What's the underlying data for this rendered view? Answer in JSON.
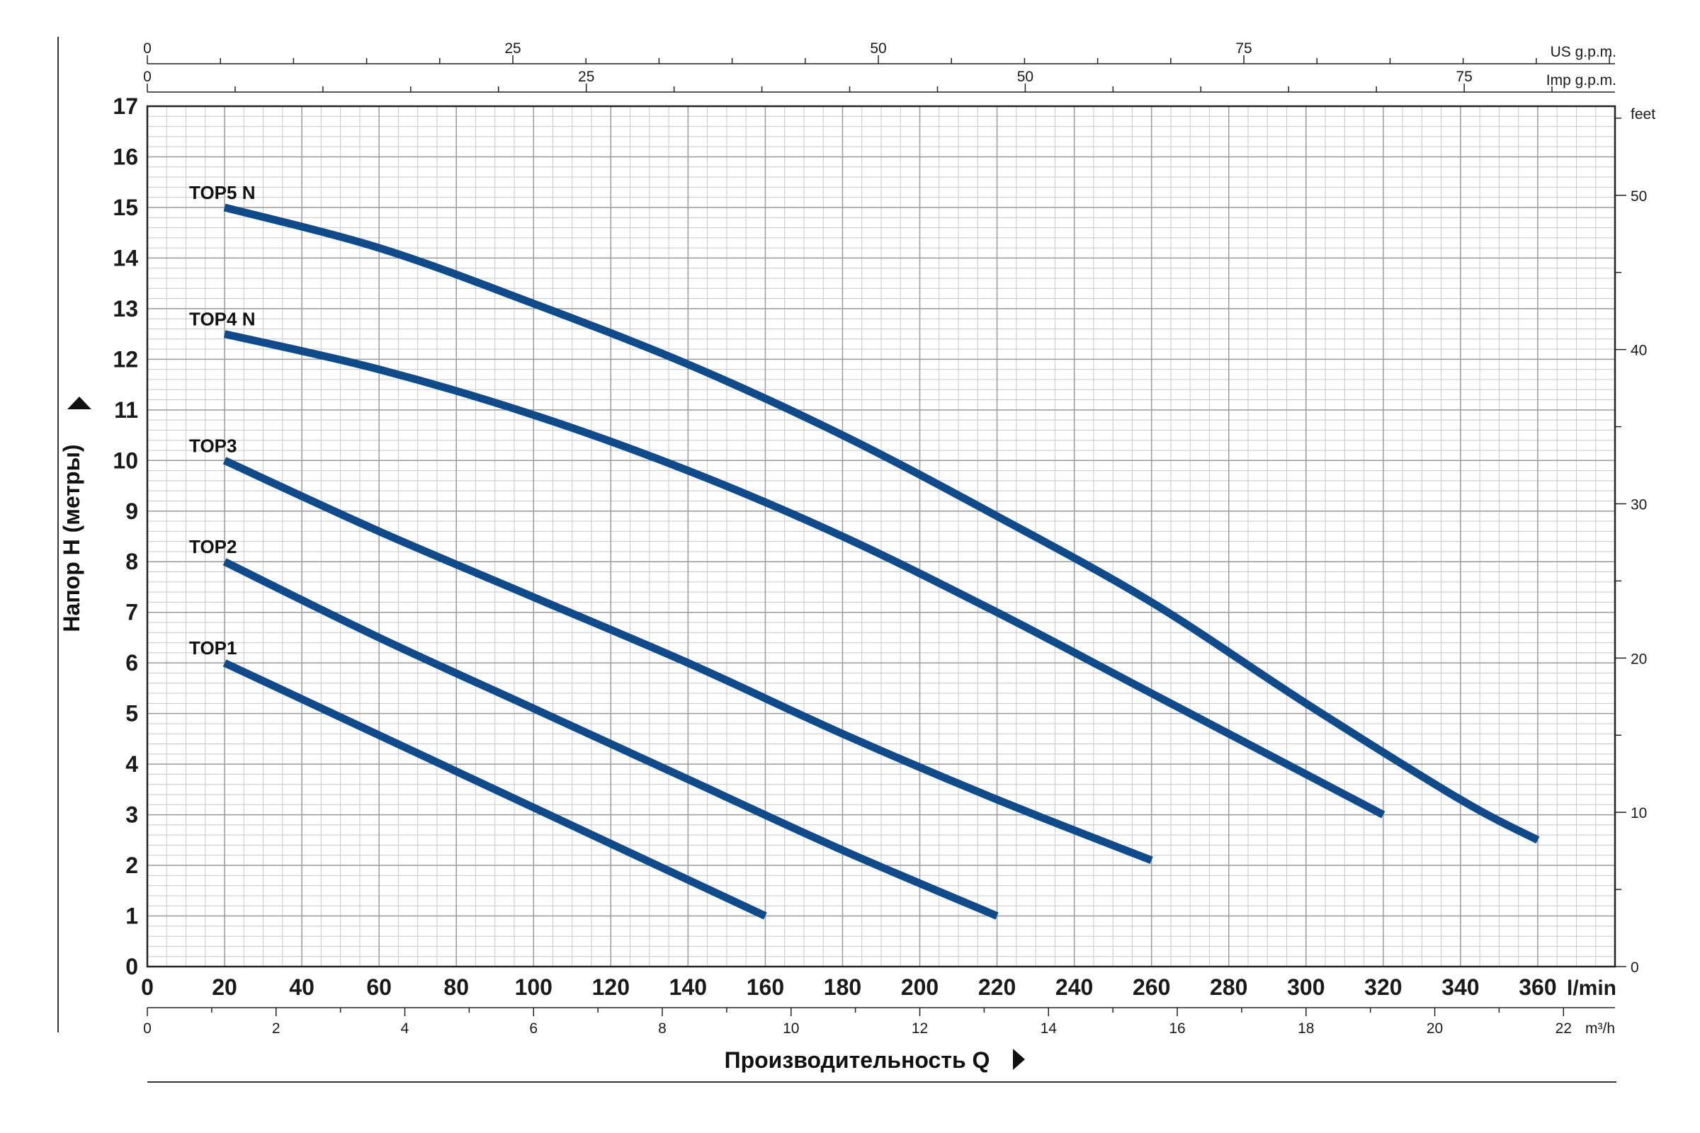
{
  "chart_data": {
    "type": "line",
    "title": "",
    "xlabel": "Производительность Q",
    "ylabel": "Напор H (метры)",
    "x_unit": "l/min",
    "xlim": [
      0,
      380
    ],
    "ylim": [
      0,
      17
    ],
    "x_ticks": [
      0,
      20,
      40,
      60,
      80,
      100,
      120,
      140,
      160,
      180,
      200,
      220,
      240,
      260,
      280,
      300,
      320,
      340,
      360
    ],
    "y_ticks": [
      0,
      1,
      2,
      3,
      4,
      5,
      6,
      7,
      8,
      9,
      10,
      11,
      12,
      13,
      14,
      15,
      16,
      17
    ],
    "grid": true,
    "secondary_axes": {
      "us_gpm": {
        "unit": "US g.p.m.",
        "ticks": [
          0,
          25,
          50,
          75
        ]
      },
      "imp_gpm": {
        "unit": "Imp g.p.m.",
        "ticks": [
          0,
          25,
          50,
          75
        ]
      },
      "m3h": {
        "unit": "m³/h",
        "ticks": [
          0,
          2,
          4,
          6,
          8,
          10,
          12,
          14,
          16,
          18,
          20,
          22
        ]
      },
      "feet": {
        "unit": "feet",
        "ticks": [
          0,
          10,
          20,
          30,
          40,
          50
        ]
      }
    },
    "series": [
      {
        "name": "TOP1",
        "color": "#0f4a8a",
        "x": [
          20,
          160
        ],
        "y": [
          6,
          1
        ]
      },
      {
        "name": "TOP2",
        "color": "#0f4a8a",
        "x": [
          20,
          60,
          100,
          140,
          180,
          220
        ],
        "y": [
          8,
          6.5,
          5.1,
          3.7,
          2.3,
          1.0
        ]
      },
      {
        "name": "TOP3",
        "color": "#0f4a8a",
        "x": [
          20,
          60,
          100,
          140,
          180,
          220,
          260
        ],
        "y": [
          10,
          8.6,
          7.3,
          6.0,
          4.6,
          3.3,
          2.1
        ]
      },
      {
        "name": "TOP4 N",
        "color": "#0f4a8a",
        "x": [
          20,
          60,
          100,
          140,
          180,
          220,
          260,
          300,
          320
        ],
        "y": [
          12.5,
          11.8,
          10.9,
          9.8,
          8.5,
          7.0,
          5.4,
          3.8,
          3.0
        ]
      },
      {
        "name": "TOP5 N",
        "color": "#0f4a8a",
        "x": [
          20,
          60,
          100,
          140,
          180,
          220,
          260,
          300,
          340,
          360
        ],
        "y": [
          15,
          14.2,
          13.1,
          11.9,
          10.5,
          8.9,
          7.2,
          5.2,
          3.3,
          2.5
        ]
      }
    ]
  }
}
